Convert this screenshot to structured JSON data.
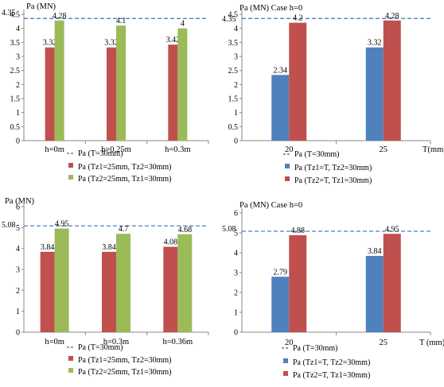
{
  "charts": [
    {
      "type": "bar",
      "title": "Pa (MN)",
      "categories": [
        "h=0m",
        "h=0.25m",
        "h=0.3m"
      ],
      "xlabel": "",
      "ylim": [
        0,
        4.5
      ],
      "yticks": [
        "0",
        "0.5",
        "1",
        "1.5",
        "2",
        "2.5",
        "3",
        "3.5",
        "4",
        "4.5"
      ],
      "reference": {
        "name": "Pa (T=30mm)",
        "value": 4.35,
        "label": "4.35"
      },
      "series": [
        {
          "name": "Pa (Tz1=25mm, Tz2=30mm)",
          "color": "#c0504d",
          "values": [
            3.32,
            3.32,
            3.42
          ],
          "labels": [
            "3.32",
            "3.32",
            "3.42"
          ]
        },
        {
          "name": "Pa (Tz2=25mm, Tz1=30mm)",
          "color": "#9bbb59",
          "values": [
            4.28,
            4.1,
            4.0
          ],
          "labels": [
            "4.28",
            "4.1",
            "4"
          ]
        }
      ]
    },
    {
      "type": "bar",
      "title": "Pa (MN) Case h=0",
      "categories": [
        "20",
        "25"
      ],
      "xlabel": "T(mm)",
      "ylim": [
        0,
        4.5
      ],
      "yticks": [
        "0",
        "0.5",
        "1",
        "1.5",
        "2",
        "2.5",
        "3",
        "3.5",
        "4",
        "4.5"
      ],
      "reference": {
        "name": "Pa (T=30mm)",
        "value": 4.35,
        "label": "4.35"
      },
      "series": [
        {
          "name": "Pa (Tz1=T, Tz2=30mm)",
          "color": "#4f81bd",
          "values": [
            2.34,
            3.32
          ],
          "labels": [
            "2.34",
            "3.32"
          ]
        },
        {
          "name": "Pa (Tz2=T, Tz1=30mm)",
          "color": "#c0504d",
          "values": [
            4.2,
            4.28
          ],
          "labels": [
            "4.2",
            "4.28"
          ]
        }
      ]
    },
    {
      "type": "bar",
      "title": "Pa (MN)",
      "categories": [
        "h=0m",
        "h=0.3m",
        "h=0.36m"
      ],
      "xlabel": "",
      "ylim": [
        0,
        6
      ],
      "yticks": [
        "0",
        "1",
        "2",
        "3",
        "4",
        "5",
        "6"
      ],
      "reference": {
        "name": "Pa (T=30mm)",
        "value": 5.08,
        "label": "5.08"
      },
      "series": [
        {
          "name": "Pa (Tz1=25mm, Tz2=30mm)",
          "color": "#c0504d",
          "values": [
            3.84,
            3.84,
            4.08
          ],
          "labels": [
            "3.84",
            "3.84",
            "4.08"
          ]
        },
        {
          "name": "Pa (Tz2=25mm, Tz1=30mm)",
          "color": "#9bbb59",
          "values": [
            4.95,
            4.7,
            4.68
          ],
          "labels": [
            "4.95",
            "4.7",
            "4.68"
          ]
        }
      ]
    },
    {
      "type": "bar",
      "title": "Pa (MN) Case h=0",
      "categories": [
        "20",
        "25"
      ],
      "xlabel": "T (mm)",
      "ylim": [
        0,
        6
      ],
      "yticks": [
        "0",
        "1",
        "2",
        "3",
        "4",
        "5",
        "6"
      ],
      "reference": {
        "name": "Pa (T=30mm)",
        "value": 5.08,
        "label": "5.08"
      },
      "series": [
        {
          "name": "Pa (Tz1=T, Tz2=30mm)",
          "color": "#4f81bd",
          "values": [
            2.79,
            3.84
          ],
          "labels": [
            "2.79",
            "3.84"
          ]
        },
        {
          "name": "Pa (Tz2=T, Tz1=30mm)",
          "color": "#c0504d",
          "values": [
            4.88,
            4.95
          ],
          "labels": [
            "4.88",
            "4.95"
          ]
        }
      ]
    }
  ],
  "reference_color": "#4f81bd"
}
